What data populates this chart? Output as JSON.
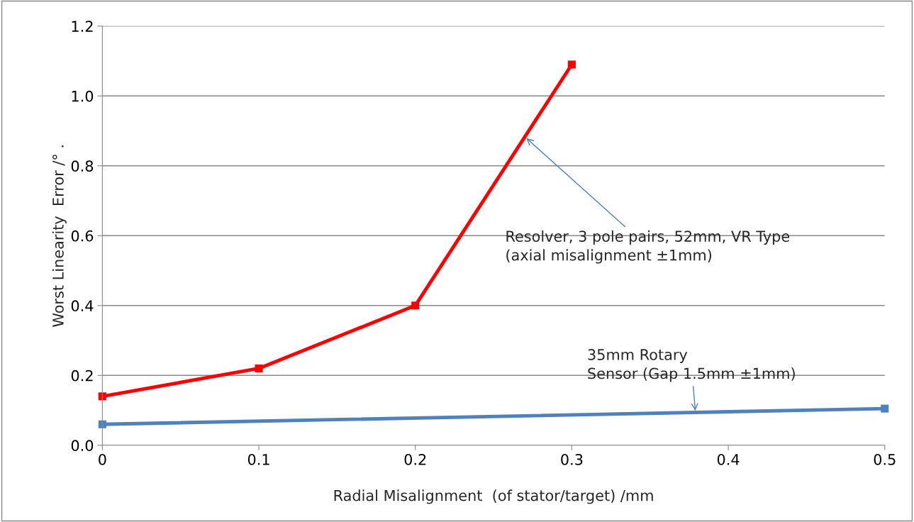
{
  "chart_data": {
    "type": "line",
    "xlabel": "Radial Misalignment  (of stator/target) /mm",
    "ylabel": "Worst Linearity  Error /° .",
    "series": [
      {
        "x": [
          0,
          0.1,
          0.2,
          0.3
        ],
        "values": [
          0.14,
          0.22,
          0.4,
          1.09
        ],
        "color": "#ff0000"
      },
      {
        "x": [
          0,
          0.5
        ],
        "values": [
          0.06,
          0.105
        ],
        "color": "#4f81bd"
      }
    ],
    "xlim": [
      0,
      0.5
    ],
    "xticks": [
      0,
      0.1,
      0.2,
      0.3,
      0.4,
      0.5
    ],
    "ylim": [
      0,
      1.2
    ],
    "yticks": [
      {
        "value": 0,
        "label": "0.0"
      },
      {
        "value": 0.2,
        "label": "0.2"
      },
      {
        "value": 0.4,
        "label": "0.4"
      },
      {
        "value": 0.6,
        "label": "0.6"
      },
      {
        "value": 0.8,
        "label": "0.8"
      },
      {
        "value": 1.0,
        "label": "1.0"
      },
      {
        "value": 1.2,
        "label": "1.2"
      }
    ],
    "grid": "y",
    "marker": "square",
    "line_style": "solid",
    "annotations": [
      {
        "text": "Resolver, 3 pole pairs, 52mm, VR Type\n(axial misalignment ±1mm)",
        "x": 0.27,
        "y": 0.883
      },
      {
        "text": "35mm Rotary\nSensor (Gap 1.5mm ±1mm)",
        "x": 0.379,
        "y": 0.093
      }
    ]
  }
}
